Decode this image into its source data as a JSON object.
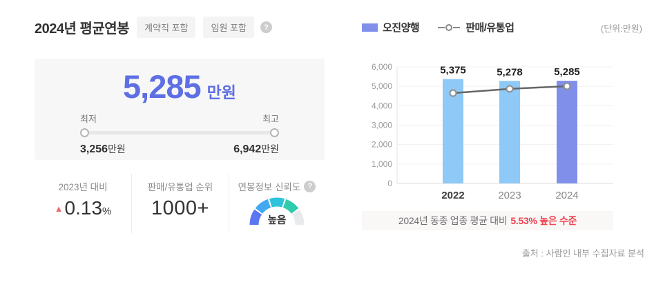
{
  "left": {
    "title": "2024년 평균연봉",
    "badges": [
      "계약직 포함",
      "임원 포함"
    ],
    "help_icon": "?",
    "card": {
      "average_value": "5,285",
      "average_unit": "만원",
      "min_label": "최저",
      "max_label": "최고",
      "min_value": "3,256",
      "max_value": "6,942",
      "value_suffix": "만원"
    },
    "stats": [
      {
        "label": "2023년 대비",
        "direction_icon": "▲",
        "value": "0.13",
        "suffix": "%"
      },
      {
        "label": "판매/유통업 순위",
        "value": "1000+"
      },
      {
        "label": "연봉정보 신뢰도",
        "help_icon": "?",
        "value": "높음"
      }
    ],
    "gauge": {
      "label": "높음",
      "segment_colors": [
        "#5b76f3",
        "#41a9f0",
        "#2fc3d9",
        "#2ecbad",
        "#e9eaeb"
      ]
    },
    "accent_color": "#5e6fe3",
    "up_color": "#ef6a6a"
  },
  "right": {
    "legend": {
      "bar_label": "오진양행",
      "bar_color": "#8090ea",
      "line_label": "판매/유통업",
      "line_color": "#888888"
    },
    "unit_note": "(단위:만원)",
    "annotation": {
      "text": "2024년 동종 업종 평균 대비",
      "highlight": "5.53% 높은 수준"
    },
    "source": "출처 : 사람인 내부 수집자료 분석",
    "highlight_color": "#f0424e"
  },
  "chart_data": {
    "type": "bar",
    "categories": [
      "2022",
      "2023",
      "2024"
    ],
    "series": [
      {
        "name": "오진양행",
        "type": "bar",
        "values": [
          5375,
          5278,
          5285
        ],
        "bar_colors": [
          "#8ec9f7",
          "#8ec9f7",
          "#8090ea"
        ]
      },
      {
        "name": "판매/유통업",
        "type": "line",
        "values": [
          4650,
          4870,
          5008
        ],
        "color": "#666666",
        "marker": "open-circle"
      }
    ],
    "title": "",
    "xlabel": "",
    "ylabel": "",
    "ylim": [
      0,
      6000
    ],
    "ytick_step": 1000,
    "unit": "만원",
    "grid": true,
    "legend_position": "top"
  }
}
